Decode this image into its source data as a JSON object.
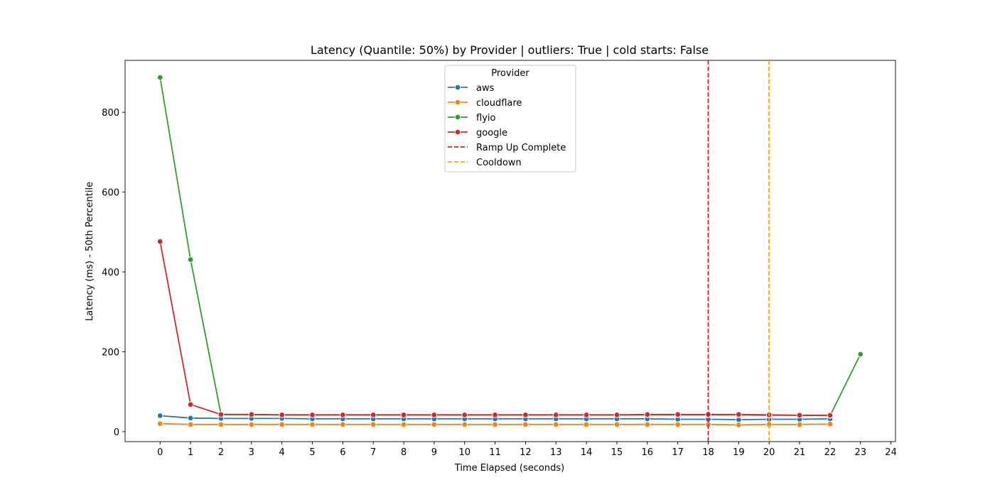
{
  "chart_data": {
    "type": "line",
    "title": "Latency (Quantile: 50%) by Provider | outliers: True | cold starts: False",
    "xlabel": "Time Elapsed (seconds)",
    "ylabel": "Latency (ms) - 50th Percentile",
    "xlim": [
      -1.15,
      24.15
    ],
    "ylim": [
      -25,
      930
    ],
    "xticks": [
      0,
      1,
      2,
      3,
      4,
      5,
      6,
      7,
      8,
      9,
      10,
      11,
      12,
      13,
      14,
      15,
      16,
      17,
      18,
      19,
      20,
      21,
      22,
      23,
      24
    ],
    "yticks": [
      0,
      200,
      400,
      600,
      800
    ],
    "grid": false,
    "legend": {
      "title": "Provider",
      "position": "top-center"
    },
    "series": [
      {
        "name": "aws",
        "color": "#1f77b4",
        "x": [
          0,
          1,
          2,
          3,
          4,
          5,
          6,
          7,
          8,
          9,
          10,
          11,
          12,
          13,
          14,
          15,
          16,
          17,
          18,
          19,
          20,
          21,
          22
        ],
        "y": [
          40,
          34,
          33,
          33,
          33,
          32,
          32,
          32,
          32,
          32,
          32,
          32,
          32,
          32,
          32,
          32,
          32,
          31,
          31,
          30,
          31,
          31,
          32
        ]
      },
      {
        "name": "cloudflare",
        "color": "#ff7f0e",
        "x": [
          0,
          1,
          2,
          3,
          4,
          5,
          6,
          7,
          8,
          9,
          10,
          11,
          12,
          13,
          14,
          15,
          16,
          17,
          18,
          19,
          20,
          21,
          22
        ],
        "y": [
          20,
          18,
          18,
          18,
          18,
          18,
          18,
          18,
          18,
          18,
          18,
          18,
          18,
          18,
          18,
          18,
          18,
          18,
          18,
          17,
          18,
          18,
          19
        ]
      },
      {
        "name": "flyio",
        "color": "#2ca02c",
        "x": [
          0,
          1,
          2,
          3,
          4,
          5,
          6,
          7,
          8,
          9,
          10,
          11,
          12,
          13,
          14,
          15,
          16,
          17,
          18,
          19,
          20,
          21,
          22,
          23
        ],
        "y": [
          887,
          431,
          43,
          43,
          42,
          42,
          42,
          42,
          42,
          42,
          42,
          42,
          42,
          42,
          42,
          42,
          42,
          42,
          42,
          42,
          41,
          41,
          40,
          194
        ]
      },
      {
        "name": "google",
        "color": "#d62728",
        "x": [
          0,
          1,
          2,
          3,
          4,
          5,
          6,
          7,
          8,
          9,
          10,
          11,
          12,
          13,
          14,
          15,
          16,
          17,
          18,
          19,
          20,
          21,
          22
        ],
        "y": [
          476,
          68,
          43,
          43,
          42,
          42,
          42,
          42,
          42,
          42,
          42,
          42,
          42,
          42,
          42,
          42,
          43,
          43,
          43,
          43,
          42,
          41,
          41
        ]
      }
    ],
    "vlines": [
      {
        "name": "Ramp Up Complete",
        "x": 18,
        "color": "#e31a1c"
      },
      {
        "name": "Cooldown",
        "x": 20,
        "color": "#ffa500"
      }
    ]
  }
}
